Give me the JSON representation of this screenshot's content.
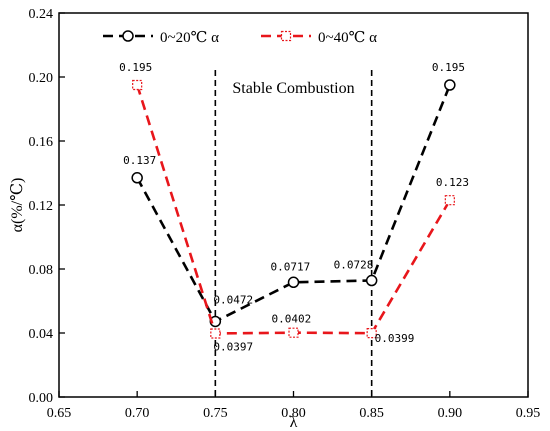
{
  "chart_data": {
    "type": "line",
    "xlabel": "λ",
    "ylabel": "α(%/℃)",
    "xlim": [
      0.65,
      0.95
    ],
    "ylim": [
      0.0,
      0.24
    ],
    "x_ticks": [
      0.65,
      0.7,
      0.75,
      0.8,
      0.85,
      0.9,
      0.95
    ],
    "x_tick_labels": [
      "0.65",
      "0.70",
      "0.75",
      "0.80",
      "0.85",
      "0.90",
      "0.95"
    ],
    "y_ticks": [
      0.0,
      0.04,
      0.08,
      0.12,
      0.16,
      0.2,
      0.24
    ],
    "y_tick_labels": [
      "0.00",
      "0.04",
      "0.08",
      "0.12",
      "0.16",
      "0.20",
      "0.24"
    ],
    "grid": false,
    "legend_position": "top",
    "region": {
      "label": "Stable Combustion",
      "x_start": 0.75,
      "x_end": 0.85
    },
    "series": [
      {
        "name": "0~20℃  α",
        "color": "#000000",
        "marker": "circle",
        "x": [
          0.7,
          0.75,
          0.8,
          0.85,
          0.9
        ],
        "y": [
          0.137,
          0.0472,
          0.0717,
          0.0728,
          0.195
        ],
        "labels": [
          "0.137",
          "0.0472",
          "0.0717",
          "0.0728",
          "0.195"
        ]
      },
      {
        "name": "0~40℃  α",
        "color": "#e8161b",
        "marker": "square",
        "x": [
          0.7,
          0.75,
          0.8,
          0.85,
          0.9
        ],
        "y": [
          0.195,
          0.0397,
          0.0402,
          0.0399,
          0.123
        ],
        "labels": [
          "0.195",
          "0.0397",
          "0.0402",
          "0.0399",
          "0.123"
        ]
      }
    ]
  }
}
